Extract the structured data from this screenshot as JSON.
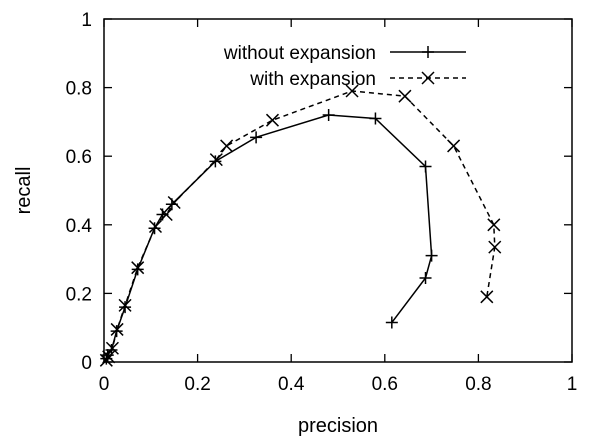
{
  "chart_data": {
    "type": "line",
    "title": "",
    "xlabel": "precision",
    "ylabel": "recall",
    "xlim": [
      0,
      1
    ],
    "ylim": [
      0,
      1
    ],
    "xticks": [
      "0",
      "0.2",
      "0.4",
      "0.6",
      "0.8",
      "1"
    ],
    "yticks": [
      "0",
      "0.2",
      "0.4",
      "0.6",
      "0.8",
      "1"
    ],
    "grid": false,
    "legend_position": "top-center",
    "series": [
      {
        "name": "without expansion",
        "marker": "plus",
        "line_style": "solid",
        "color": "#000000",
        "points": [
          [
            0.005,
            0.01
          ],
          [
            0.008,
            0.02
          ],
          [
            0.016,
            0.035
          ],
          [
            0.027,
            0.09
          ],
          [
            0.045,
            0.16
          ],
          [
            0.072,
            0.27
          ],
          [
            0.108,
            0.39
          ],
          [
            0.125,
            0.43
          ],
          [
            0.145,
            0.46
          ],
          [
            0.238,
            0.585
          ],
          [
            0.325,
            0.655
          ],
          [
            0.48,
            0.72
          ],
          [
            0.58,
            0.71
          ],
          [
            0.687,
            0.57
          ],
          [
            0.7,
            0.31
          ],
          [
            0.687,
            0.245
          ],
          [
            0.615,
            0.115
          ]
        ]
      },
      {
        "name": "with expansion",
        "marker": "cross",
        "line_style": "dashed",
        "color": "#000000",
        "points": [
          [
            0.005,
            0.005
          ],
          [
            0.01,
            0.015
          ],
          [
            0.018,
            0.04
          ],
          [
            0.028,
            0.095
          ],
          [
            0.045,
            0.165
          ],
          [
            0.072,
            0.275
          ],
          [
            0.11,
            0.395
          ],
          [
            0.133,
            0.43
          ],
          [
            0.15,
            0.465
          ],
          [
            0.24,
            0.59
          ],
          [
            0.262,
            0.63
          ],
          [
            0.36,
            0.705
          ],
          [
            0.53,
            0.79
          ],
          [
            0.643,
            0.775
          ],
          [
            0.747,
            0.63
          ],
          [
            0.833,
            0.4
          ],
          [
            0.835,
            0.335
          ],
          [
            0.818,
            0.19
          ]
        ]
      }
    ]
  }
}
